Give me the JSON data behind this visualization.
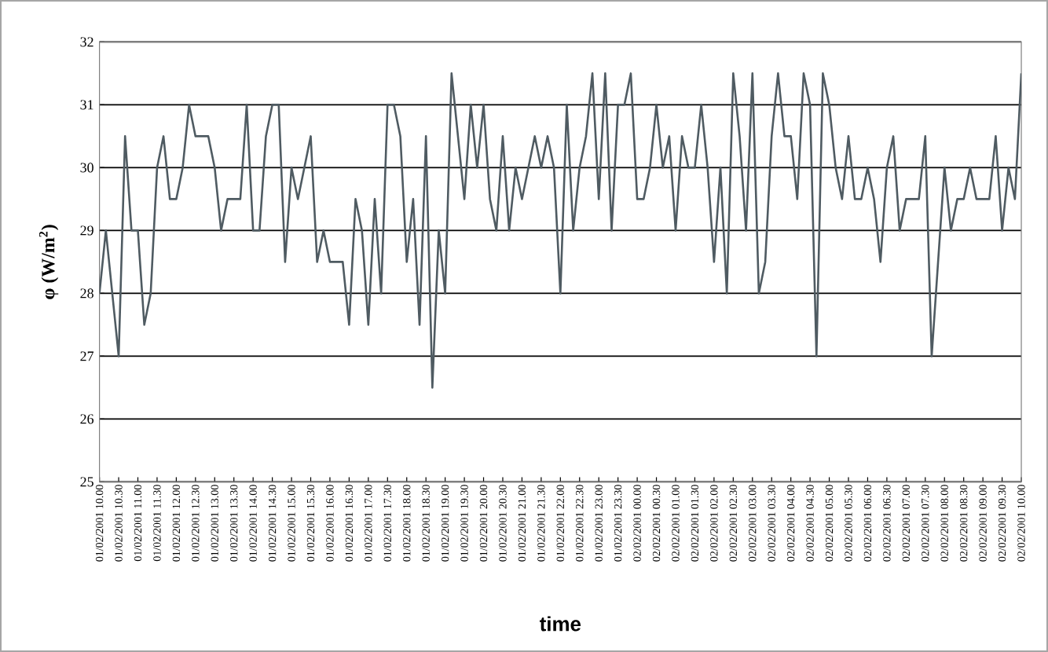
{
  "chart_data": {
    "type": "line",
    "xlabel": "time",
    "ylabel": "φ (W/m$^{2}$)",
    "categories": [
      "01/02/2001 10.00",
      null,
      null,
      "01/02/2001 10.30",
      null,
      null,
      "01/02/2001 11.00",
      null,
      null,
      "01/02/2001 11.30",
      null,
      null,
      "01/02/2001 12.00",
      null,
      null,
      "01/02/2001 12.30",
      null,
      null,
      "01/02/2001 13.00",
      null,
      null,
      "01/02/2001 13.30",
      null,
      null,
      "01/02/2001 14.00",
      null,
      null,
      "01/02/2001 14.30",
      null,
      null,
      "01/02/2001 15.00",
      null,
      null,
      "01/02/2001 15.30",
      null,
      null,
      "01/02/2001 16.00",
      null,
      null,
      "01/02/2001 16.30",
      null,
      null,
      "01/02/2001 17.00",
      null,
      null,
      "01/02/2001 17.30",
      null,
      null,
      "01/02/2001 18.00",
      null,
      null,
      "01/02/2001 18.30",
      null,
      null,
      "01/02/2001 19.00",
      null,
      null,
      "01/02/2001 19.30",
      null,
      null,
      "01/02/2001 20.00",
      null,
      null,
      "01/02/2001 20.30",
      null,
      null,
      "01/02/2001 21.00",
      null,
      null,
      "01/02/2001 21.30",
      null,
      null,
      "01/02/2001 22.00",
      null,
      null,
      "01/02/2001 22.30",
      null,
      null,
      "01/02/2001 23.00",
      null,
      null,
      "01/02/2001 23.30",
      null,
      null,
      "02/02/2001 00.00",
      null,
      null,
      "02/02/2001 00.30",
      null,
      null,
      "02/02/2001 01.00",
      null,
      null,
      "02/02/2001 01.30",
      null,
      null,
      "02/02/2001 02.00",
      null,
      null,
      "02/02/2001 02.30",
      null,
      null,
      "02/02/2001 03.00",
      null,
      null,
      "02/02/2001 03.30",
      null,
      null,
      "02/02/2001 04.00",
      null,
      null,
      "02/02/2001 04.30",
      null,
      null,
      "02/02/2001 05.00",
      null,
      null,
      "02/02/2001 05.30",
      null,
      null,
      "02/02/2001 06.00",
      null,
      null,
      "02/02/2001 06.30",
      null,
      null,
      "02/02/2001 07.00",
      null,
      null,
      "02/02/2001 07.30",
      null,
      null,
      "02/02/2001 08.00",
      null,
      null,
      "02/02/2001 08.30",
      null,
      null,
      "02/02/2001 09.00",
      null,
      null,
      "02/02/2001 09.30",
      null,
      null,
      "02/02/2001 10.00"
    ],
    "values": [
      28,
      29,
      28,
      27,
      30.5,
      29,
      29,
      27.5,
      28,
      30,
      30.5,
      29.5,
      29.5,
      30,
      31,
      30.5,
      30.5,
      30.5,
      30,
      29,
      29.5,
      29.5,
      29.5,
      31,
      29,
      29,
      30.5,
      31,
      31,
      28.5,
      30,
      29.5,
      30,
      30.5,
      28.5,
      29,
      28.5,
      28.5,
      28.5,
      27.5,
      29.5,
      29,
      27.5,
      29.5,
      28,
      31,
      31,
      30.5,
      28.5,
      29.5,
      27.5,
      30.5,
      26.5,
      29,
      28,
      31.5,
      30.5,
      29.5,
      31,
      30,
      31,
      29.5,
      29,
      30.5,
      29,
      30,
      29.5,
      30,
      30.5,
      30,
      30.5,
      30,
      28,
      31,
      29,
      30,
      30.5,
      31.5,
      29.5,
      31.5,
      29,
      31,
      31,
      31.5,
      29.5,
      29.5,
      30,
      31,
      30,
      30.5,
      29,
      30.5,
      30,
      30,
      31,
      30,
      28.5,
      30,
      28,
      31.5,
      30.5,
      29,
      31.5,
      28,
      28.5,
      30.5,
      31.5,
      30.5,
      30.5,
      29.5,
      31.5,
      31,
      27,
      31.5,
      31,
      30,
      29.5,
      30.5,
      29.5,
      29.5,
      30,
      29.5,
      28.5,
      30,
      30.5,
      29,
      29.5,
      29.5,
      29.5,
      30.5,
      27,
      28.5,
      30,
      29,
      29.5,
      29.5,
      30,
      29.5,
      29.5,
      29.5,
      30.5,
      29,
      30,
      29.5,
      31.5
    ],
    "color": "#4f5b62",
    "ylim": [
      25,
      32
    ],
    "yticks": [
      25,
      26,
      27,
      28,
      29,
      30,
      31,
      32
    ],
    "grid": "y"
  }
}
